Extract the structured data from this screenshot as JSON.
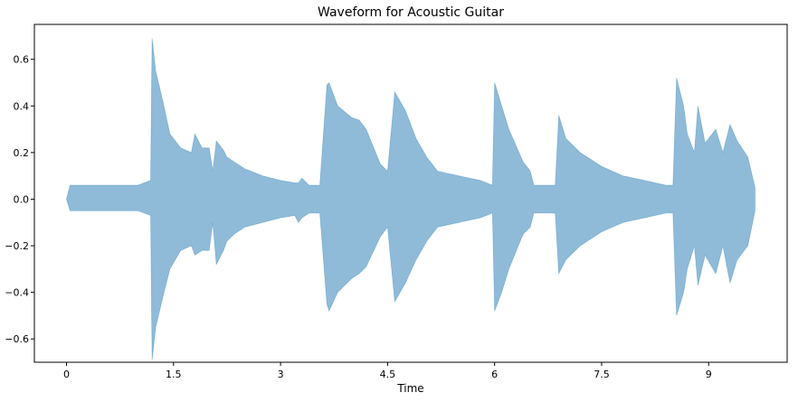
{
  "chart_data": {
    "type": "area",
    "title": "Waveform for Acoustic Guitar",
    "xlabel": "Time",
    "ylabel": "",
    "xlim": [
      -0.45,
      10.1
    ],
    "ylim": [
      -0.7,
      0.75
    ],
    "x_ticks": [
      0,
      1.5,
      3,
      4.5,
      6,
      7.5,
      9
    ],
    "x_tick_labels": [
      "0",
      "1.5",
      "3",
      "4.5",
      "6",
      "7.5",
      "9"
    ],
    "y_ticks": [
      -0.6,
      -0.4,
      -0.2,
      0.0,
      0.2,
      0.4,
      0.6
    ],
    "y_tick_labels": [
      "−0.6",
      "−0.4",
      "−0.2",
      "0.0",
      "0.2",
      "0.4",
      "0.6"
    ],
    "grid": false,
    "legend": "none",
    "colors": {
      "fill": "#1f77b4",
      "fill_opacity": 0.5
    },
    "series": [
      {
        "x": [
          0,
          0.05,
          0.2,
          0.6,
          1.0,
          1.18,
          1.2,
          1.25,
          1.35,
          1.45,
          1.6,
          1.75,
          1.8,
          1.9,
          2.0,
          2.05,
          2.1,
          2.2,
          2.25,
          2.35,
          2.5,
          2.75,
          3.0,
          3.2,
          3.25,
          3.3,
          3.4,
          3.55,
          3.65,
          3.68,
          3.8,
          4.0,
          4.1,
          4.2,
          4.4,
          4.5,
          4.6,
          4.75,
          4.9,
          5.05,
          5.2,
          5.5,
          5.8,
          5.97,
          6.0,
          6.1,
          6.2,
          6.4,
          6.5,
          6.55,
          6.7,
          6.85,
          6.9,
          7.0,
          7.2,
          7.5,
          7.8,
          8.1,
          8.4,
          8.5,
          8.55,
          8.65,
          8.7,
          8.8,
          8.85,
          8.95,
          9.1,
          9.2,
          9.3,
          9.4,
          9.55,
          9.65
        ],
        "upper": [
          0.0,
          0.06,
          0.06,
          0.06,
          0.06,
          0.08,
          0.69,
          0.55,
          0.42,
          0.28,
          0.22,
          0.2,
          0.28,
          0.22,
          0.22,
          0.12,
          0.25,
          0.21,
          0.18,
          0.16,
          0.13,
          0.1,
          0.08,
          0.07,
          0.07,
          0.09,
          0.06,
          0.06,
          0.49,
          0.5,
          0.4,
          0.35,
          0.34,
          0.3,
          0.15,
          0.12,
          0.46,
          0.38,
          0.26,
          0.18,
          0.12,
          0.1,
          0.08,
          0.06,
          0.5,
          0.4,
          0.3,
          0.16,
          0.12,
          0.06,
          0.06,
          0.06,
          0.36,
          0.26,
          0.2,
          0.14,
          0.1,
          0.08,
          0.06,
          0.06,
          0.52,
          0.4,
          0.28,
          0.2,
          0.4,
          0.24,
          0.3,
          0.2,
          0.32,
          0.25,
          0.18,
          0.05
        ],
        "lower": [
          0.0,
          -0.05,
          -0.05,
          -0.05,
          -0.05,
          -0.07,
          -0.69,
          -0.55,
          -0.42,
          -0.3,
          -0.22,
          -0.2,
          -0.24,
          -0.22,
          -0.22,
          -0.1,
          -0.28,
          -0.22,
          -0.18,
          -0.15,
          -0.12,
          -0.1,
          -0.08,
          -0.07,
          -0.1,
          -0.08,
          -0.06,
          -0.06,
          -0.45,
          -0.48,
          -0.4,
          -0.34,
          -0.32,
          -0.29,
          -0.16,
          -0.12,
          -0.44,
          -0.36,
          -0.26,
          -0.18,
          -0.12,
          -0.1,
          -0.08,
          -0.06,
          -0.48,
          -0.4,
          -0.3,
          -0.15,
          -0.12,
          -0.06,
          -0.06,
          -0.06,
          -0.32,
          -0.26,
          -0.2,
          -0.14,
          -0.1,
          -0.08,
          -0.06,
          -0.06,
          -0.5,
          -0.4,
          -0.3,
          -0.2,
          -0.37,
          -0.24,
          -0.32,
          -0.2,
          -0.36,
          -0.26,
          -0.2,
          -0.05
        ]
      }
    ]
  }
}
